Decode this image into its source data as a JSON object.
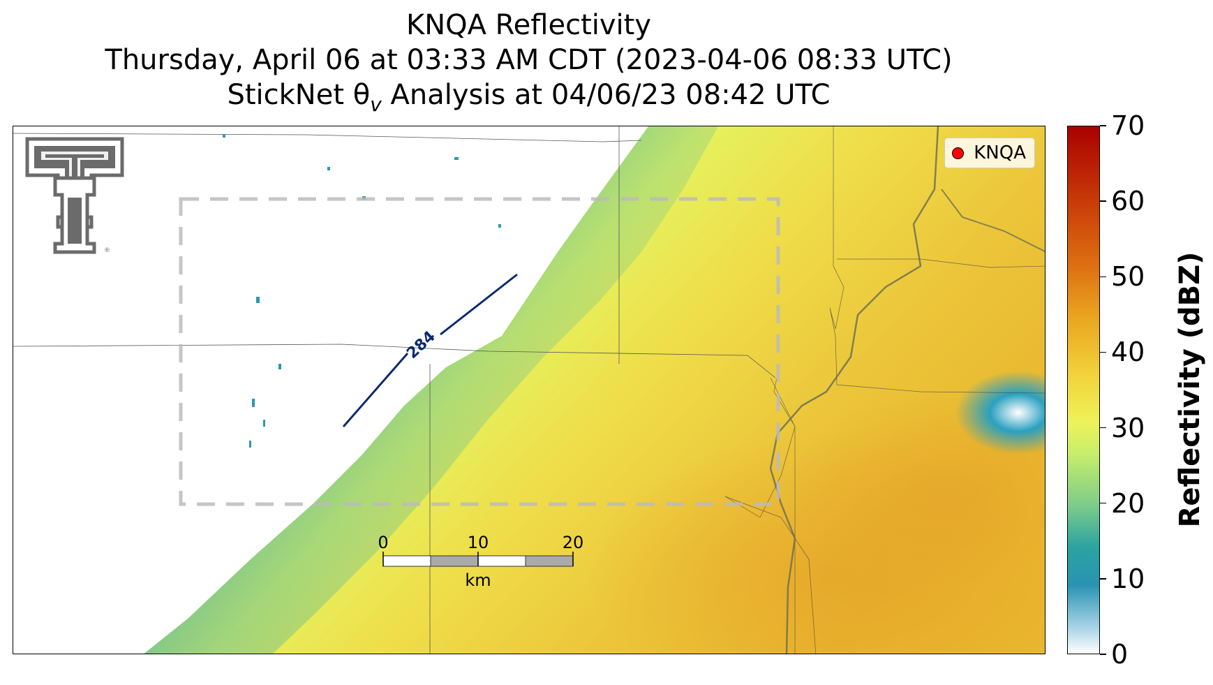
{
  "title": {
    "line1": "KNQA Reflectivity",
    "line2": "Thursday, April 06 at 03:33 AM CDT (2023-04-06 08:33 UTC)",
    "line3_pre": "StickNet θ",
    "line3_sub": "v",
    "line3_post": " Analysis at 04/06/23 08:42 UTC"
  },
  "legend": {
    "label": "KNQA",
    "marker_color": "#ff0000"
  },
  "contour": {
    "label": "284",
    "color": "#0a2a6e"
  },
  "scale_bar": {
    "ticks": [
      "0",
      "10",
      "20"
    ],
    "unit": "km"
  },
  "colorbar": {
    "label": "Reflectivity (dBZ)",
    "min": 0,
    "max": 70,
    "tick_labels": [
      "0",
      "10",
      "20",
      "30",
      "40",
      "50",
      "60",
      "70"
    ],
    "colors": [
      "#ffffff",
      "#2a93b3",
      "#7ccb8a",
      "#eef25a",
      "#f2d23a",
      "#e9a41f",
      "#de7212",
      "#aa0000"
    ]
  },
  "logo": {
    "name": "Texas Tech Double T"
  }
}
